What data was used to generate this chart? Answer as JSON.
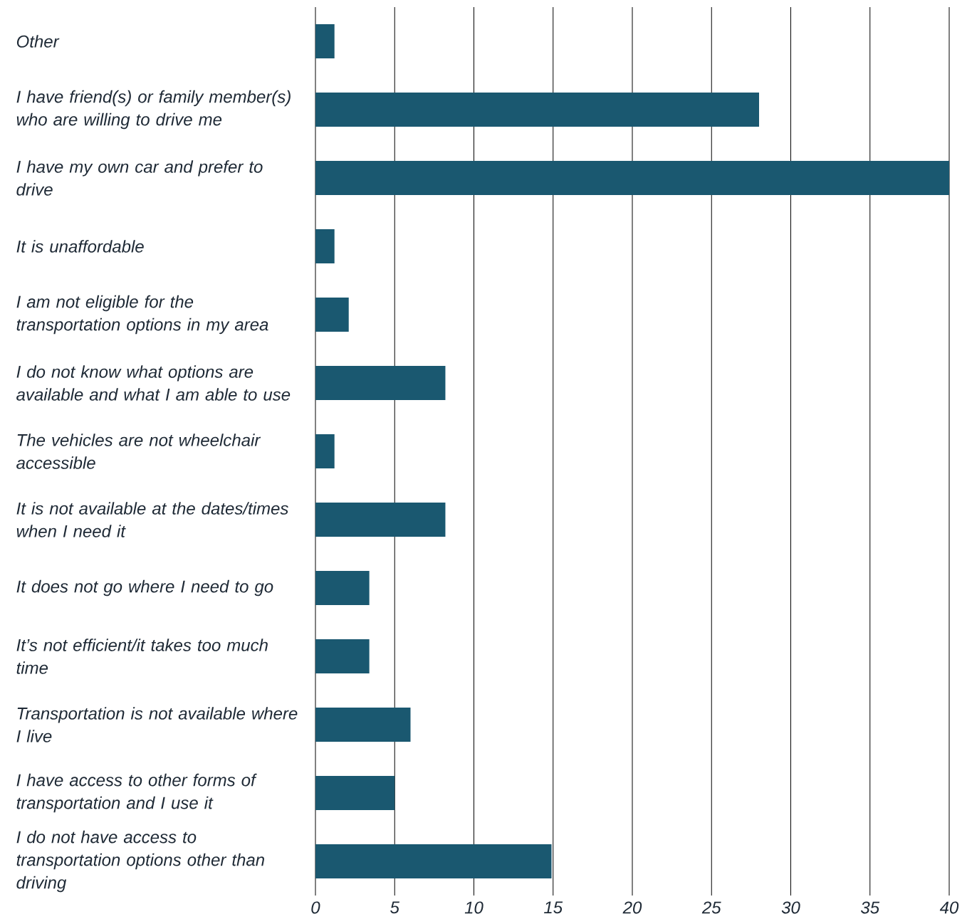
{
  "chart_data": {
    "type": "bar",
    "orientation": "horizontal",
    "categories": [
      "Other",
      "I have friend(s) or family member(s) who are willing to drive me",
      "I have my own car and prefer to drive",
      "It is unaffordable",
      "I am not eligible for the transportation options in my area",
      "I do not know what options are available and what I am able to use",
      "The vehicles are not wheelchair accessible",
      "It is not available at the dates/times when I need it",
      "It does not go where I need to go",
      "It’s not efficient/it takes too much time",
      "Transportation is not available where I live",
      "I have access to other forms of transportation and I use it",
      "I do not have access to transportation options other than driving"
    ],
    "values": [
      1.2,
      28,
      40,
      1.2,
      2.1,
      8.2,
      1.2,
      8.2,
      3.4,
      3.4,
      6.0,
      5.0,
      14.9
    ],
    "color": "#1a5870",
    "xlim": [
      0,
      40
    ],
    "xticks": [
      0,
      5,
      10,
      15,
      20,
      25,
      30,
      35,
      40
    ],
    "grid": "x"
  }
}
